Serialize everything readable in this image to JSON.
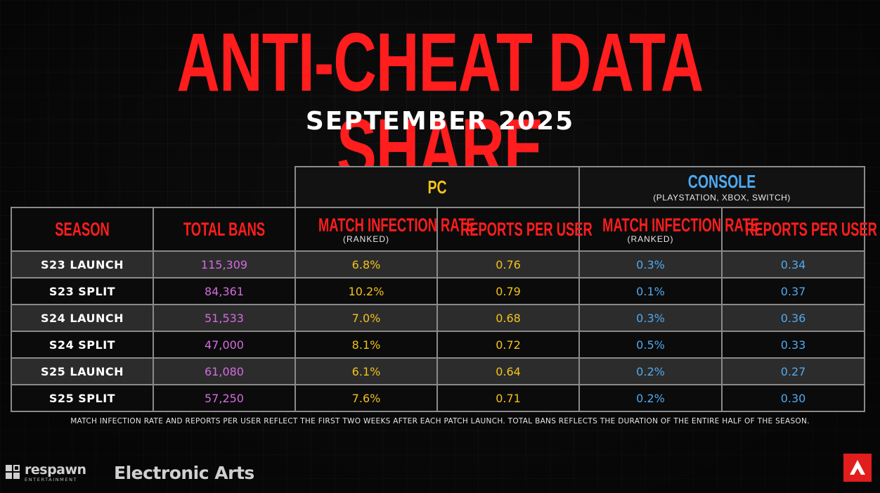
{
  "title": "ANTI-CHEAT DATA SHARE",
  "subtitle": "SEPTEMBER 2025",
  "groups": {
    "pc": {
      "label": "PC"
    },
    "console": {
      "label": "CONSOLE",
      "sub": "(PLAYSTATION, XBOX, SWITCH)"
    }
  },
  "headers": {
    "season": "SEASON",
    "total_bans": "TOTAL BANS",
    "pc_infection": "MATCH INFECTION RATE",
    "pc_infection_sub": "(RANKED)",
    "pc_reports": "REPORTS PER USER",
    "console_infection": "MATCH INFECTION RATE",
    "console_infection_sub": "(RANKED)",
    "console_reports": "REPORTS PER USER"
  },
  "rows": [
    {
      "season": "S23 LAUNCH",
      "total_bans": "115,309",
      "pc_infection": "6.8%",
      "pc_reports": "0.76",
      "console_infection": "0.3%",
      "console_reports": "0.34"
    },
    {
      "season": "S23 SPLIT",
      "total_bans": "84,361",
      "pc_infection": "10.2%",
      "pc_reports": "0.79",
      "console_infection": "0.1%",
      "console_reports": "0.37"
    },
    {
      "season": "S24 LAUNCH",
      "total_bans": "51,533",
      "pc_infection": "7.0%",
      "pc_reports": "0.68",
      "console_infection": "0.3%",
      "console_reports": "0.36"
    },
    {
      "season": "S24 SPLIT",
      "total_bans": "47,000",
      "pc_infection": "8.1%",
      "pc_reports": "0.72",
      "console_infection": "0.5%",
      "console_reports": "0.33"
    },
    {
      "season": "S25 LAUNCH",
      "total_bans": "61,080",
      "pc_infection": "6.1%",
      "pc_reports": "0.64",
      "console_infection": "0.2%",
      "console_reports": "0.27"
    },
    {
      "season": "S25 SPLIT",
      "total_bans": "57,250",
      "pc_infection": "7.6%",
      "pc_reports": "0.71",
      "console_infection": "0.2%",
      "console_reports": "0.30"
    }
  ],
  "footnote": "MATCH INFECTION RATE AND REPORTS PER USER REFLECT THE FIRST TWO WEEKS AFTER EACH PATCH LAUNCH.  TOTAL BANS REFLECTS THE DURATION OF THE ENTIRE HALF OF THE SEASON.",
  "logos": {
    "respawn": {
      "name": "respawn",
      "sub": "ENTERTAINMENT",
      "icon": "respawn-logo-icon"
    },
    "ea": "Electronic Arts",
    "apex": "apex-legends-logo-icon"
  },
  "colors": {
    "accent_red": "#ff1d1d",
    "pc_yellow": "#f2c21c",
    "console_blue": "#4fa9f0",
    "bans_purple": "#d46be0"
  }
}
